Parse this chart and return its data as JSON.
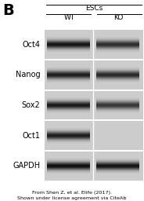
{
  "bg_color": "#ffffff",
  "panel_letter": "B",
  "escs_label": "ESCs",
  "wt_label": "WT",
  "ko_label": "KO",
  "citation": "From Shen Z, et al. Elife (2017).\nShown under license agreement via CiteAb",
  "bands": [
    {
      "label": "Oct4",
      "wt_dark": 0.92,
      "ko_dark": 0.8,
      "ko_present": true
    },
    {
      "label": "Nanog",
      "wt_dark": 0.88,
      "ko_dark": 0.82,
      "ko_present": true
    },
    {
      "label": "Sox2",
      "wt_dark": 0.9,
      "ko_dark": 0.75,
      "ko_present": true
    },
    {
      "label": "Oct1",
      "wt_dark": 0.88,
      "ko_dark": 0.1,
      "ko_present": false
    },
    {
      "label": "GAPDH",
      "wt_dark": 0.95,
      "ko_dark": 0.93,
      "ko_present": true
    }
  ],
  "panel_letter_fontsize": 14,
  "label_fontsize": 7.0,
  "header_fontsize": 6.5,
  "citation_fontsize": 4.6,
  "blot_bg_light": 0.82,
  "blot_bg_dark": 0.74,
  "band_sigma": 0.18
}
